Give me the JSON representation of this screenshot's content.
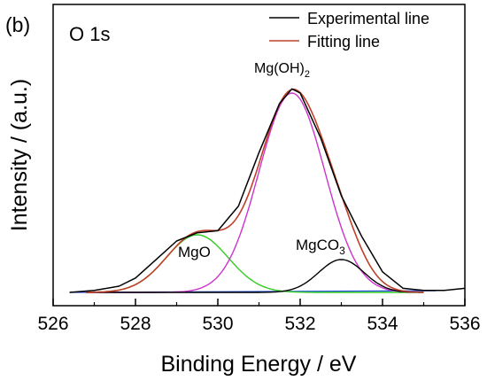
{
  "panel_label": "(b)",
  "chart_data": {
    "type": "line",
    "title": "O 1s",
    "xlabel": "Binding Energy / eV",
    "ylabel": "Intensity / (a.u.)",
    "xlim": [
      526,
      536
    ],
    "ylim": [
      0,
      1
    ],
    "x_ticks": [
      "526",
      "528",
      "530",
      "532",
      "534",
      "536"
    ],
    "grid": false,
    "legend_position": "top-right",
    "legend": [
      {
        "label": "Experimental line",
        "color": "#000000"
      },
      {
        "label": "Fitting line",
        "color": "#c0402a"
      }
    ],
    "peaks": [
      {
        "label": "MgO",
        "label_base": "MgO",
        "label_sub": "",
        "center": 529.5,
        "height": 0.28,
        "width": 0.75,
        "color": "#33cc22"
      },
      {
        "label": "Mg(OH)2",
        "label_base": "Mg(OH)",
        "label_sub": "2",
        "center": 531.8,
        "height": 0.97,
        "width": 0.8,
        "color": "#cc33cc"
      },
      {
        "label": "MgCO3",
        "label_base": "MgCO",
        "label_sub": "3",
        "center": 533.0,
        "height": 0.16,
        "width": 0.55,
        "color": "#000000"
      }
    ],
    "baseline": {
      "start_x": 526.4,
      "start_y": 0.0,
      "slope": 0.0009
    },
    "series": [
      {
        "name": "Experimental line",
        "x": [
          526.4,
          527.0,
          527.6,
          528.0,
          528.5,
          529.0,
          529.5,
          530.0,
          530.5,
          531.0,
          531.5,
          531.8,
          532.0,
          532.5,
          533.0,
          533.5,
          534.0,
          534.5,
          535.0,
          535.5,
          536.0
        ],
        "y": [
          0.0,
          0.01,
          0.03,
          0.07,
          0.16,
          0.25,
          0.29,
          0.3,
          0.42,
          0.68,
          0.92,
          0.99,
          0.97,
          0.75,
          0.47,
          0.27,
          0.1,
          0.02,
          0.01,
          0.01,
          0.02
        ]
      },
      {
        "name": "Fitting line",
        "x": [
          526.8,
          527.5,
          528.0,
          528.5,
          529.0,
          529.5,
          530.0,
          530.5,
          531.0,
          531.5,
          531.8,
          532.0,
          532.5,
          533.0,
          533.5,
          534.0,
          534.5,
          535.0
        ],
        "y": [
          0.0,
          0.02,
          0.07,
          0.15,
          0.24,
          0.28,
          0.3,
          0.41,
          0.68,
          0.93,
          0.98,
          0.96,
          0.74,
          0.46,
          0.25,
          0.09,
          0.02,
          0.01
        ]
      }
    ]
  }
}
